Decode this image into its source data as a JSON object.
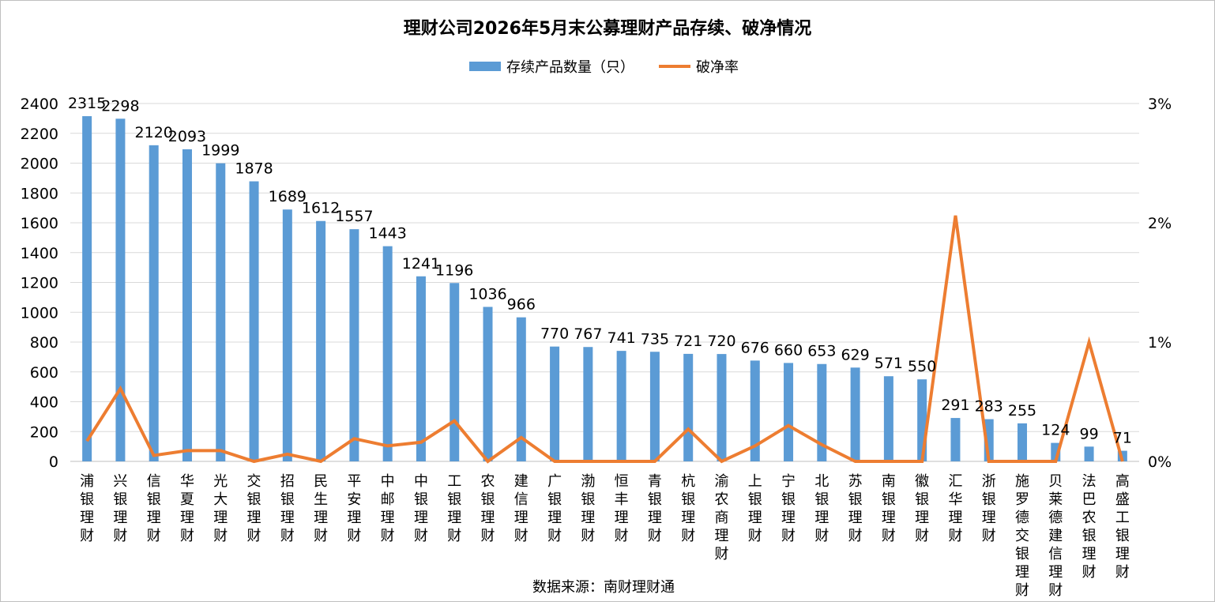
{
  "chart_data": {
    "type": "bar",
    "title": "理财公司2026年5月末公募理财产品存续、破净情况",
    "source": "数据来源：南财理财通",
    "categories": [
      "浦银理财",
      "兴银理财",
      "信银理财",
      "华夏理财",
      "光大理财",
      "交银理财",
      "招银理财",
      "民生理财",
      "平安理财",
      "中邮理财",
      "中银理财",
      "工银理财",
      "农银理财",
      "建信理财",
      "广银理财",
      "渤银理财",
      "恒丰理财",
      "青银理财",
      "杭银理财",
      "渝农商理财",
      "上银理财",
      "宁银理财",
      "北银理财",
      "苏银理财",
      "南银理财",
      "徽银理财",
      "汇华理财",
      "浙银理财",
      "施罗德交银理财",
      "贝莱德建信理财",
      "法巴农银理财",
      "高盛工银理财"
    ],
    "series": [
      {
        "name": "存续产品数量（只）",
        "type": "bar",
        "axis": "left",
        "color": "#5b9bd5",
        "values": [
          2315,
          2298,
          2120,
          2093,
          1999,
          1878,
          1689,
          1612,
          1557,
          1443,
          1241,
          1196,
          1036,
          966,
          770,
          767,
          741,
          735,
          721,
          720,
          676,
          660,
          653,
          629,
          571,
          550,
          291,
          283,
          255,
          124,
          99,
          71
        ]
      },
      {
        "name": "破净率",
        "type": "line",
        "axis": "right",
        "color": "#ed7d31",
        "values": [
          0.17,
          0.61,
          0.05,
          0.09,
          0.09,
          0.0,
          0.06,
          0.0,
          0.19,
          0.13,
          0.16,
          0.34,
          0.0,
          0.2,
          0.0,
          0.0,
          0.0,
          0.0,
          0.27,
          0.0,
          0.13,
          0.3,
          0.14,
          0.0,
          0.0,
          0.0,
          2.06,
          0.0,
          0.0,
          0.0,
          1.0,
          0.0
        ]
      }
    ],
    "y_left": {
      "min": 0,
      "max": 2400,
      "ticks": [
        "0",
        "200",
        "400",
        "600",
        "800",
        "1000",
        "1200",
        "1400",
        "1600",
        "1800",
        "2000",
        "2200",
        "2400"
      ]
    },
    "y_right": {
      "min": 0,
      "max": 3,
      "ticks": [
        "0%",
        "1%",
        "2%",
        "3%"
      ]
    },
    "legend_position": "top-center",
    "grid": true
  }
}
